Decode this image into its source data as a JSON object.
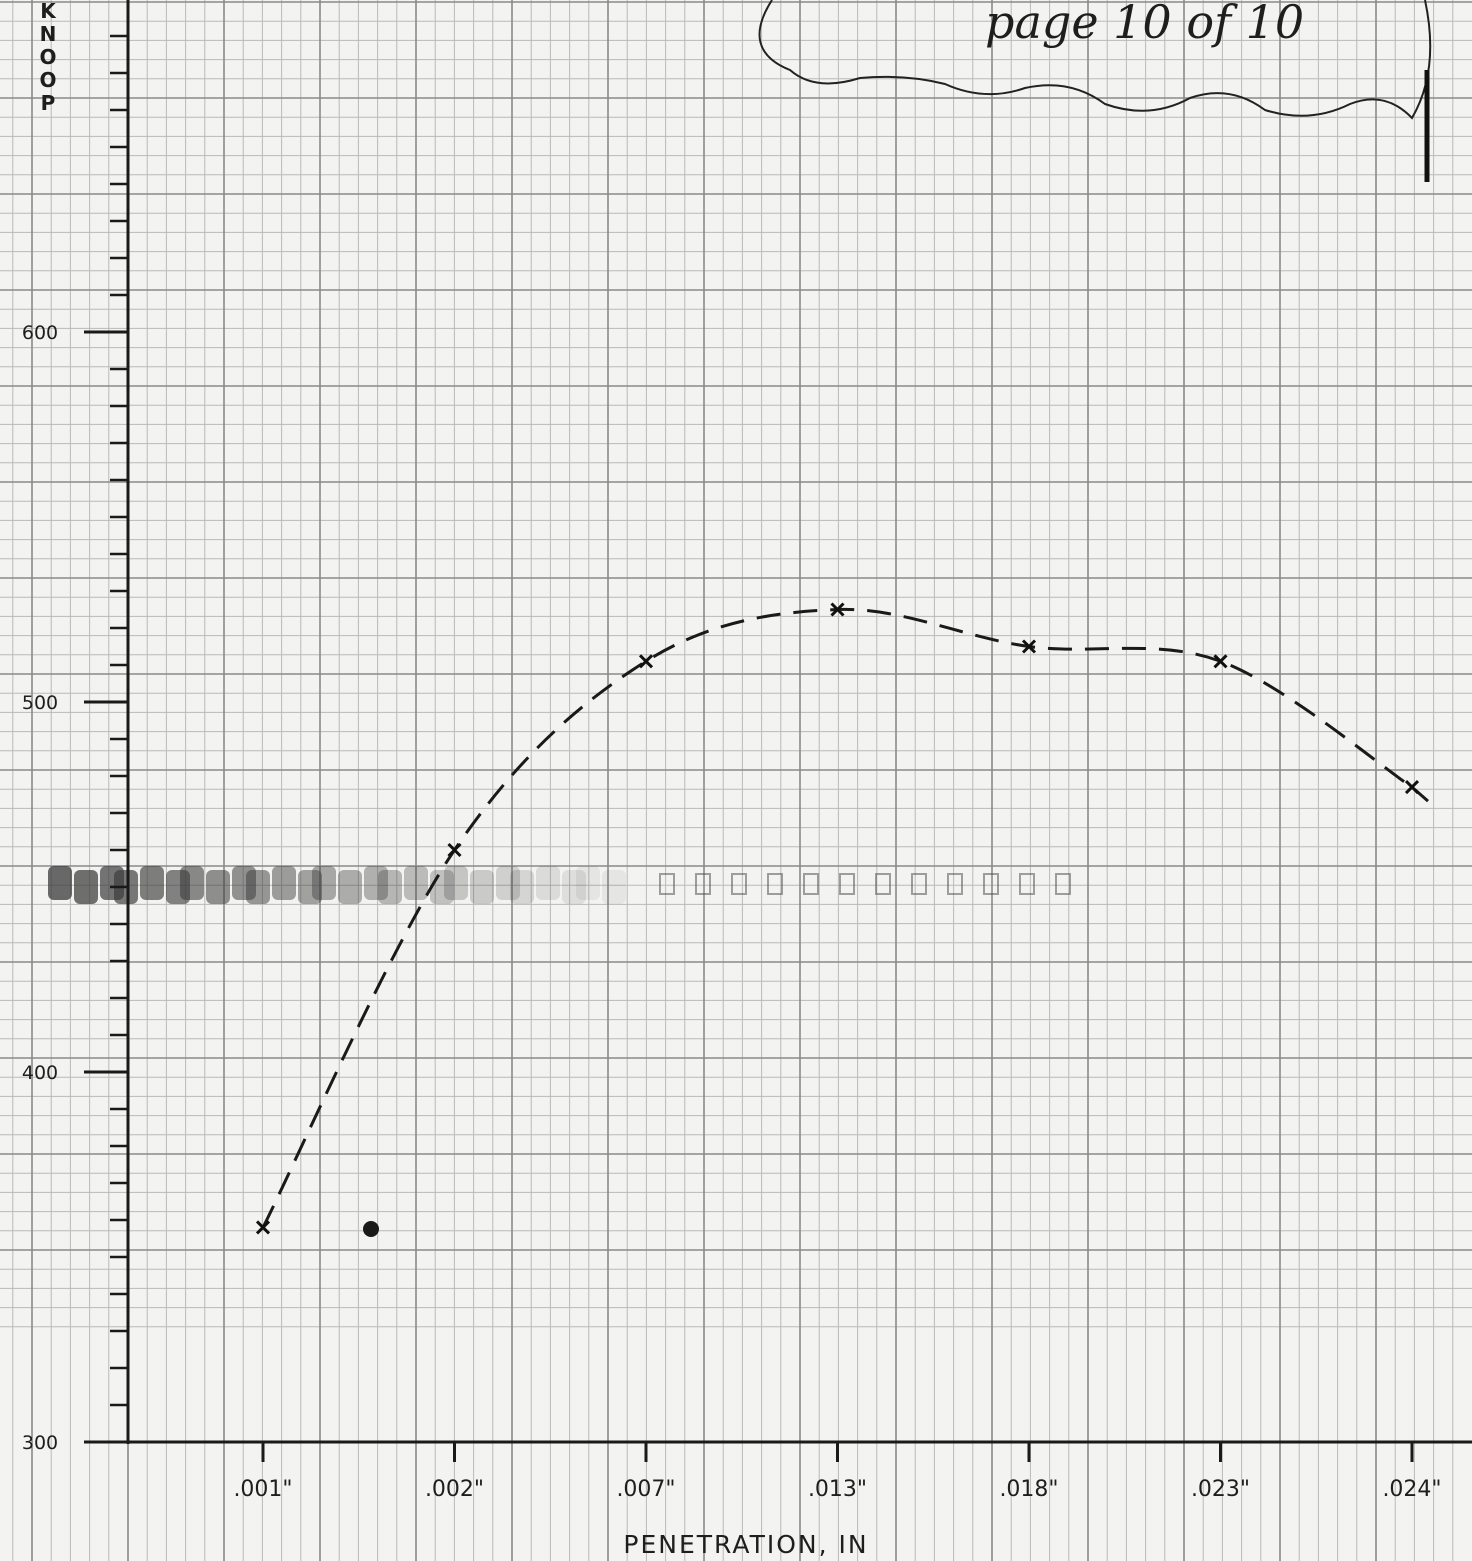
{
  "note": {
    "text": "page 10 of 10"
  },
  "chart_data": {
    "type": "line",
    "ylabel": "KNOOP",
    "xlabel": "PENETRATION, IN",
    "categories": [
      ".001\"",
      ".002\"",
      ".007\"",
      ".013\"",
      ".018\"",
      ".023\"",
      ".024\""
    ],
    "yticks": [
      300,
      400,
      500,
      600
    ],
    "ylim": [
      300,
      680
    ],
    "grid": true,
    "series": [
      {
        "style": "dashed",
        "marker": "x",
        "values": [
          358,
          460,
          511,
          525,
          515,
          511,
          477
        ]
      }
    ]
  }
}
